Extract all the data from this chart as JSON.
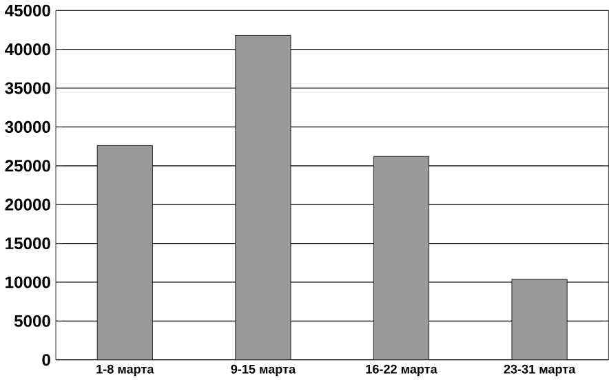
{
  "chart_data": {
    "type": "bar",
    "categories": [
      "1-8 марта",
      "9-15 марта",
      "16-22 марта",
      "23-31 марта"
    ],
    "values": [
      27600,
      41800,
      26200,
      10400
    ],
    "color": "#9a9a9a",
    "ylim": [
      0,
      45000
    ],
    "yticks": [
      0,
      5000,
      10000,
      15000,
      20000,
      25000,
      30000,
      35000,
      40000,
      45000
    ],
    "grid": "y"
  }
}
